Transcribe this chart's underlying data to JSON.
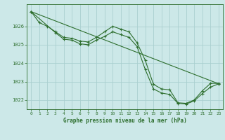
{
  "title": "Graphe pression niveau de la mer (hPa)",
  "background_color": "#cce8e8",
  "grid_color": "#aacfcf",
  "line_color": "#2d6e2d",
  "marker_color": "#2d6e2d",
  "xlim": [
    -0.5,
    23.5
  ],
  "ylim": [
    1021.5,
    1027.2
  ],
  "xticks": [
    0,
    1,
    2,
    3,
    4,
    5,
    6,
    7,
    8,
    9,
    10,
    11,
    12,
    13,
    14,
    15,
    16,
    17,
    18,
    19,
    20,
    21,
    22,
    23
  ],
  "yticks": [
    1022,
    1023,
    1024,
    1025,
    1026
  ],
  "line1_x": [
    0,
    1,
    2,
    3,
    4,
    5,
    6,
    7,
    8,
    9,
    10,
    11,
    12,
    13,
    14,
    15,
    16,
    17,
    18,
    19,
    20,
    21,
    22,
    23
  ],
  "line1_y": [
    1026.8,
    1026.2,
    1026.0,
    1025.7,
    1025.4,
    1025.35,
    1025.2,
    1025.15,
    1025.4,
    1025.7,
    1026.0,
    1025.85,
    1025.7,
    1025.1,
    1024.15,
    1022.85,
    1022.6,
    1022.55,
    1021.85,
    1021.82,
    1022.0,
    1022.5,
    1022.9,
    1022.9
  ],
  "line2_x": [
    0,
    3,
    4,
    5,
    6,
    7,
    8,
    9,
    10,
    11,
    12,
    13,
    14,
    15,
    16,
    17,
    18,
    19,
    20,
    21,
    22,
    23
  ],
  "line2_y": [
    1026.8,
    1025.65,
    1025.3,
    1025.25,
    1025.05,
    1025.0,
    1025.25,
    1025.45,
    1025.7,
    1025.55,
    1025.4,
    1024.9,
    1023.65,
    1022.6,
    1022.38,
    1022.3,
    1021.82,
    1021.78,
    1021.95,
    1022.35,
    1022.7,
    1022.88
  ],
  "line3_x": [
    0,
    23
  ],
  "line3_y": [
    1026.8,
    1022.88
  ]
}
